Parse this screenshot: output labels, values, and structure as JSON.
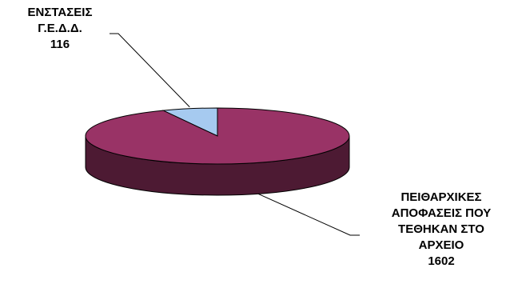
{
  "chart_data": {
    "type": "pie",
    "style": "3d",
    "title": "",
    "slices": [
      {
        "label_lines": [
          "ΕΝΣΤΑΣΕΙΣ",
          "Γ.Ε.Δ.Δ."
        ],
        "value": 116,
        "value_label": "116",
        "color": "#a6caf0",
        "side_color": "#5c7a9a"
      },
      {
        "label_lines": [
          "ΠΕΙΘΑΡΧΙΚΕΣ",
          "ΑΠΟΦΑΣΕΙΣ ΠΟΥ",
          "ΤΕΘΗΚΑΝ ΣΤΟ",
          "ΑΡΧΕΙΟ"
        ],
        "value": 1602,
        "value_label": "1602",
        "color": "#993366",
        "side_color": "#4d1a33"
      }
    ],
    "legend": "none",
    "outline_color": "#000000"
  }
}
